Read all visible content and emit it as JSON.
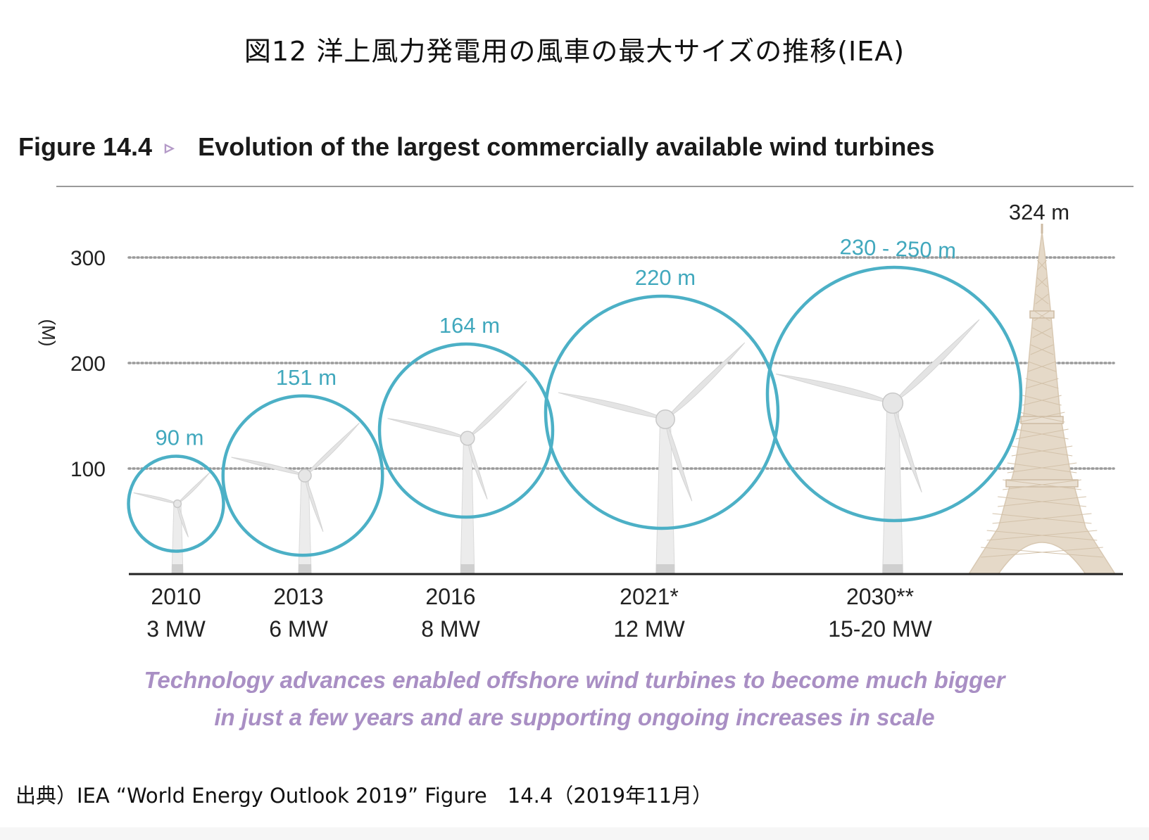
{
  "page_title": "図12 洋上風力発電用の風車の最大サイズの推移(IEA)",
  "figure": {
    "number": "Figure 14.4",
    "arrow": "▹",
    "title": "Evolution of the largest commercially available wind turbines"
  },
  "colors": {
    "circle": "#4cb0c6",
    "size_label": "#41a8bd",
    "caption": "#a98fc4",
    "tower": "#e5d9c8",
    "blade": "#e4e4e4",
    "grid": "#9a9a9a"
  },
  "chart_data": {
    "type": "bar",
    "title": "Evolution of the largest commercially available wind turbines",
    "ylabel": "(M)",
    "xlabel": "",
    "ylim": [
      0,
      324
    ],
    "yticks": [
      100,
      200,
      300
    ],
    "grid": true,
    "categories": [
      {
        "year": "2010",
        "capacity": "3 MW",
        "size_label": "90 m",
        "rotor_diameter_m": 90
      },
      {
        "year": "2013",
        "capacity": "6 MW",
        "size_label": "151 m",
        "rotor_diameter_m": 151
      },
      {
        "year": "2016",
        "capacity": "8 MW",
        "size_label": "164 m",
        "rotor_diameter_m": 164
      },
      {
        "year": "2021*",
        "capacity": "12 MW",
        "size_label": "220 m",
        "rotor_diameter_m": 220
      },
      {
        "year": "2030**",
        "capacity": "15-20 MW",
        "size_label": "230 - 250 m",
        "rotor_diameter_m": 240
      }
    ],
    "reference": {
      "name": "Eiffel Tower",
      "label": "324 m",
      "height_m": 324
    }
  },
  "caption": {
    "line1": "Technology advances enabled offshore wind turbines to become much bigger",
    "line2": "in just a few years and are supporting ongoing increases in scale"
  },
  "source": "出典）IEA “World Energy Outlook 2019” Figure　14.4（2019年11月）"
}
